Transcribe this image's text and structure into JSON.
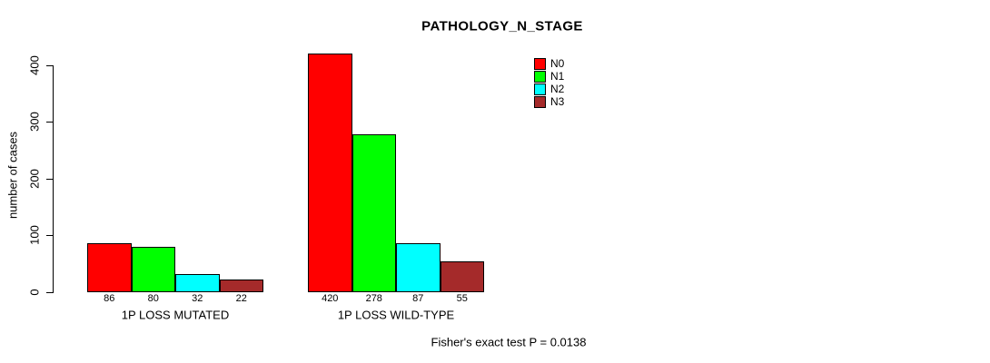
{
  "chart_data": {
    "type": "bar",
    "title": "PATHOLOGY_N_STAGE",
    "ylabel": "number of cases",
    "xlabel": "",
    "categories": [
      "1P LOSS MUTATED",
      "1P LOSS WILD-TYPE"
    ],
    "series": [
      {
        "name": "N0",
        "color": "#FF0000",
        "values": [
          86,
          420
        ]
      },
      {
        "name": "N1",
        "color": "#00FF00",
        "values": [
          80,
          278
        ]
      },
      {
        "name": "N2",
        "color": "#00FFFF",
        "values": [
          32,
          87
        ]
      },
      {
        "name": "N3",
        "color": "#A52A2A",
        "values": [
          22,
          55
        ]
      }
    ],
    "ylim": [
      0,
      400
    ],
    "yticks": [
      0,
      100,
      200,
      300,
      400
    ],
    "bar_value_labels": true,
    "grid": false,
    "legend_position": "top-right",
    "annotation": "Fisher's exact test P = 0.0138"
  }
}
